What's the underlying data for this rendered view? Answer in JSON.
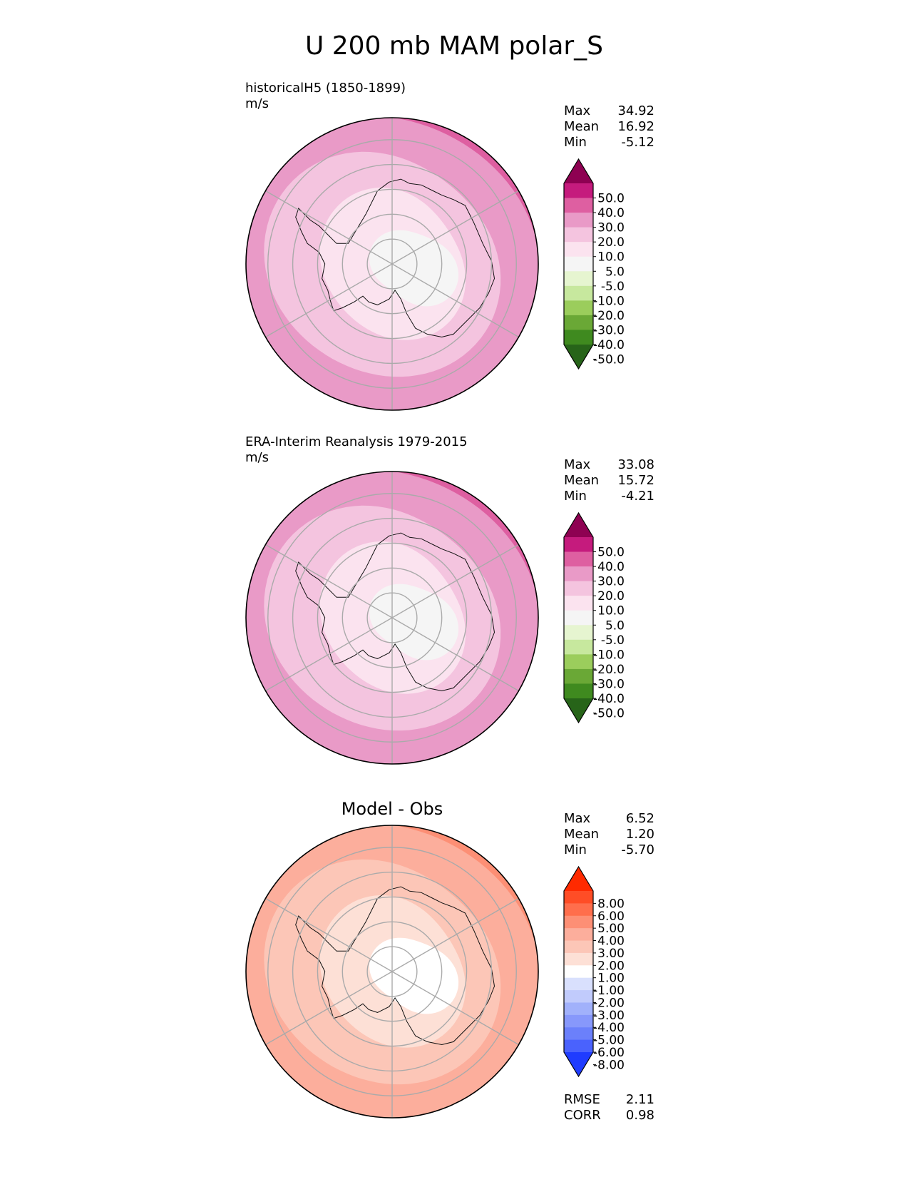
{
  "chart_data": {
    "type": "polar_contour_map",
    "title": "U 200 mb MAM polar_S",
    "panels": [
      {
        "id": "test",
        "title_lines": [
          "historicalH5 (1850-1899)",
          "m/s"
        ],
        "stats": [
          {
            "label": "Max",
            "value": "34.92"
          },
          {
            "label": "Mean",
            "value": "16.92"
          },
          {
            "label": "Min",
            "value": "-5.12"
          }
        ],
        "colorbar": {
          "tick_labels": [
            "50.0",
            "40.0",
            "30.0",
            "20.0",
            "10.0",
            "5.0",
            "-5.0",
            "-10.0",
            "-20.0",
            "-30.0",
            "-40.0",
            "-50.0"
          ],
          "colors": [
            "#8e0152",
            "#c51b7d",
            "#de5fa1",
            "#e99ac7",
            "#f4c4df",
            "#fbe3ef",
            "#f5f5f5",
            "#e6f5d0",
            "#c7e89e",
            "#9bcd5c",
            "#6aa836",
            "#3f8a1f",
            "#276419"
          ]
        },
        "field": {
          "ring_colors": [
            "#f5f5f5",
            "#fbe3ef",
            "#f4c4df",
            "#e99ac7",
            "#de5fa1"
          ]
        }
      },
      {
        "id": "ref",
        "title_lines": [
          "ERA-Interim Reanalysis 1979-2015",
          "m/s"
        ],
        "stats": [
          {
            "label": "Max",
            "value": "33.08"
          },
          {
            "label": "Mean",
            "value": "15.72"
          },
          {
            "label": "Min",
            "value": "-4.21"
          }
        ],
        "colorbar": {
          "tick_labels": [
            "50.0",
            "40.0",
            "30.0",
            "20.0",
            "10.0",
            "5.0",
            "-5.0",
            "-10.0",
            "-20.0",
            "-30.0",
            "-40.0",
            "-50.0"
          ],
          "colors": [
            "#8e0152",
            "#c51b7d",
            "#de5fa1",
            "#e99ac7",
            "#f4c4df",
            "#fbe3ef",
            "#f5f5f5",
            "#e6f5d0",
            "#c7e89e",
            "#9bcd5c",
            "#6aa836",
            "#3f8a1f",
            "#276419"
          ]
        },
        "field": {
          "ring_colors": [
            "#f5f5f5",
            "#fbe3ef",
            "#f4c4df",
            "#e99ac7",
            "#de5fa1"
          ]
        }
      },
      {
        "id": "diff",
        "title_lines": [
          "Model - Obs"
        ],
        "stats": [
          {
            "label": "Max",
            "value": "6.52"
          },
          {
            "label": "Mean",
            "value": "1.20"
          },
          {
            "label": "Min",
            "value": "-5.70"
          }
        ],
        "colorbar": {
          "tick_labels": [
            "8.00",
            "6.00",
            "5.00",
            "4.00",
            "3.00",
            "2.00",
            "1.00",
            "-1.00",
            "-2.00",
            "-3.00",
            "-4.00",
            "-5.00",
            "-6.00",
            "-8.00"
          ],
          "colors": [
            "#ff2a00",
            "#ff4d26",
            "#ff6e4c",
            "#fd8f75",
            "#fcae9c",
            "#fcc6b7",
            "#fde0d6",
            "#ffffff",
            "#d9e0fd",
            "#c1cbfc",
            "#a1b1fb",
            "#8798fb",
            "#6b80fb",
            "#4a62fd",
            "#1f3cff"
          ]
        },
        "field": {
          "ring_colors": [
            "#ffffff",
            "#fde0d6",
            "#fcc6b7",
            "#fcae9c",
            "#fd8f75"
          ]
        },
        "metrics": [
          {
            "label": "RMSE",
            "value": "2.11"
          },
          {
            "label": "CORR",
            "value": "0.98"
          }
        ]
      }
    ]
  }
}
